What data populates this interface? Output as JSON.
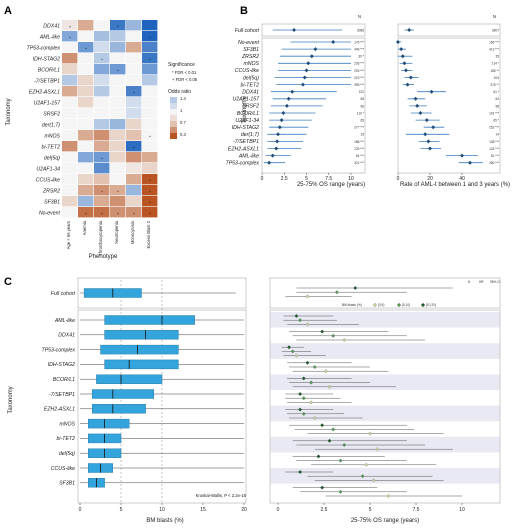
{
  "figure": {
    "panel_labels": [
      "A",
      "B",
      "C"
    ]
  },
  "chart_data": [
    {
      "type": "heatmap",
      "panel": "A",
      "rows": [
        "DDX41",
        "AML-like",
        "TP53-complex",
        "IDH-STAG2",
        "BCOR/L1",
        "-7/SETBP1",
        "EZH2-ASXL1",
        "U2AF1-157",
        "SRSF2",
        "der(1;7)",
        "mNOS",
        "bi-TET2",
        "del(5q)",
        "U2AF1-34",
        "CCUS-like",
        "ZRSR2",
        "SF3B1",
        "No-event"
      ],
      "columns": [
        "Age < 65 years",
        "Anemia",
        "Thrombocytopenia",
        "Neutropenia",
        "Monocytosis",
        "Excess Blast 2"
      ],
      "values": [
        [
          0.9,
          0.6,
          1.0,
          2.6,
          1.6,
          3.0
        ],
        [
          1.8,
          1.0,
          1.5,
          1.4,
          1.0,
          3.0
        ],
        [
          1.0,
          2.0,
          1.2,
          1.6,
          0.6,
          2.4
        ],
        [
          0.5,
          1.0,
          1.4,
          1.0,
          1.0,
          2.6
        ],
        [
          0.8,
          1.0,
          1.8,
          2.0,
          1.0,
          2.0
        ],
        [
          1.4,
          0.8,
          1.2,
          1.0,
          1.0,
          1.4
        ],
        [
          0.6,
          0.8,
          1.4,
          1.0,
          2.4,
          1.0
        ],
        [
          1.0,
          0.8,
          1.0,
          1.0,
          1.2,
          1.0
        ],
        [
          1.0,
          1.0,
          1.0,
          1.0,
          1.2,
          1.0
        ],
        [
          1.0,
          1.0,
          1.4,
          1.6,
          0.8,
          1.0
        ],
        [
          1.0,
          0.6,
          0.5,
          0.8,
          0.7,
          1.0
        ],
        [
          0.5,
          1.0,
          0.6,
          0.8,
          2.8,
          1.0
        ],
        [
          1.0,
          1.8,
          2.0,
          0.8,
          0.5,
          0.6
        ],
        [
          1.0,
          1.0,
          2.2,
          1.0,
          0.9,
          0.8
        ],
        [
          1.0,
          0.8,
          0.7,
          1.0,
          0.6,
          0.3
        ],
        [
          1.0,
          0.6,
          0.5,
          0.6,
          1.6,
          0.3
        ],
        [
          0.8,
          1.6,
          0.6,
          0.5,
          0.8,
          0.2
        ],
        [
          1.0,
          0.4,
          0.4,
          0.5,
          0.5,
          0.3
        ]
      ],
      "significance": [
        [
          "+",
          "",
          "",
          "*",
          "",
          ""
        ],
        [
          "*",
          "",
          "",
          "",
          "",
          "*"
        ],
        [
          "",
          "*",
          "",
          "",
          "",
          ""
        ],
        [
          "",
          "",
          "*",
          "",
          "",
          "*"
        ],
        [
          "",
          "",
          "",
          "*",
          "",
          ""
        ],
        [
          "",
          "",
          "",
          "",
          "",
          ""
        ],
        [
          "",
          "",
          "",
          "",
          "*",
          ""
        ],
        [
          "",
          "",
          "",
          "",
          "",
          ""
        ],
        [
          "",
          "",
          "",
          "",
          "",
          ""
        ],
        [
          "",
          "",
          "",
          "",
          "",
          ""
        ],
        [
          "",
          "",
          "",
          "",
          "",
          "*"
        ],
        [
          "",
          "",
          "",
          "",
          "*",
          ""
        ],
        [
          "",
          "",
          "*",
          "",
          "",
          ""
        ],
        [
          "",
          "",
          "",
          "",
          "",
          ""
        ],
        [
          "",
          "",
          "",
          "",
          "",
          "*"
        ],
        [
          "",
          "",
          "*",
          "*",
          "",
          "*"
        ],
        [
          "",
          "",
          "",
          "",
          "",
          "*"
        ],
        [
          "",
          "*",
          "*",
          "*",
          "*",
          "*"
        ]
      ],
      "xlabel": "Phenotype",
      "ylabel": "Taxonomy",
      "legend_sig_title": "Significance",
      "legend_sig_items": [
        "* FDR < 0.01",
        "+ FDR < 0.05"
      ],
      "legend_color_title": "Odds ratio",
      "legend_color_ticks": [
        "1.4",
        "1",
        "0.7",
        "0.3"
      ]
    },
    {
      "type": "scatter",
      "panel": "B-left",
      "categories": [
        "Full cohort",
        "No-event",
        "SF3B1",
        "ZRSR2",
        "mNOS",
        "CCUS-like",
        "del(5q)",
        "bi-TET2",
        "DDX41",
        "U2AF1-157",
        "SRSF2",
        "BCOR/L1",
        "U2AF1-34",
        "IDH-STAG2",
        "der(1;7)",
        "-7/SETBP1",
        "EZH2-ASXL1",
        "AML-like",
        "TP53-complex"
      ],
      "values": [
        3.6,
        8.0,
        6.0,
        5.6,
        5.2,
        5.0,
        4.8,
        4.6,
        3.4,
        3.0,
        2.8,
        2.4,
        2.2,
        2.0,
        1.8,
        1.7,
        1.6,
        1.2,
        0.8
      ],
      "low": [
        1.2,
        3.2,
        2.2,
        2.0,
        1.8,
        1.8,
        1.4,
        1.6,
        1.0,
        1.2,
        1.0,
        0.8,
        0.8,
        0.8,
        0.6,
        0.6,
        0.6,
        0.4,
        0.2
      ],
      "high": [
        9.0,
        10,
        10,
        10,
        10,
        10,
        10,
        10,
        8.4,
        7.2,
        6.8,
        6.0,
        5.6,
        5.2,
        5.0,
        4.6,
        4.4,
        3.2,
        2.6
      ],
      "n_labels": [
        "3085",
        "175",
        "449",
        "39",
        "236",
        "203",
        "219",
        "399",
        "102",
        "68",
        "66",
        "110",
        "65",
        "277",
        "15",
        "188",
        "129",
        "64",
        "321"
      ],
      "sig": [
        "",
        "***",
        "***",
        "*",
        "***",
        "***",
        "***",
        "***",
        "",
        "",
        "",
        "*",
        "",
        "***",
        "",
        "***",
        "***",
        "***",
        "***"
      ],
      "n_header": "N",
      "xlabel": "25-75% OS range (years)",
      "ylabel": "Taxonomy",
      "xticks": [
        "0",
        "2.5",
        "5",
        "7.5",
        "10"
      ],
      "xlim": [
        0,
        10
      ]
    },
    {
      "type": "scatter",
      "panel": "B-right",
      "values": [
        0.07,
        0.0,
        0.02,
        0.03,
        0.04,
        0.05,
        0.08,
        0.06,
        0.21,
        0.11,
        0.12,
        0.14,
        0.18,
        0.22,
        0.17,
        0.19,
        0.2,
        0.4,
        0.45
      ],
      "low": [
        0.04,
        0.0,
        0.0,
        0.0,
        0.01,
        0.02,
        0.04,
        0.03,
        0.12,
        0.06,
        0.07,
        0.08,
        0.11,
        0.16,
        0.05,
        0.13,
        0.14,
        0.3,
        0.38
      ],
      "high": [
        0.1,
        0.02,
        0.05,
        0.09,
        0.09,
        0.09,
        0.13,
        0.1,
        0.3,
        0.17,
        0.18,
        0.21,
        0.26,
        0.29,
        0.32,
        0.26,
        0.27,
        0.5,
        0.53
      ],
      "n_labels": [
        "2807",
        "156",
        "413",
        "35",
        "214",
        "185",
        "204",
        "375",
        "61",
        "64",
        "58",
        "101",
        "65",
        "252",
        "14",
        "138",
        "124",
        "51",
        "280"
      ],
      "sig": [
        "",
        "***",
        "***",
        "",
        "*",
        "**",
        "",
        "**",
        "*",
        "",
        "",
        "***",
        "*",
        "***",
        "",
        "***",
        "***",
        "***",
        "***"
      ],
      "n_header": "N",
      "xlabel": "Rate of AML-t between 1 and 3 years (%)",
      "xticks": [
        "0",
        "20",
        "40"
      ],
      "xlim": [
        0,
        0.55
      ]
    },
    {
      "type": "bar",
      "panel": "C-left",
      "categories": [
        "Full cohort",
        "AML-like",
        "DDX41",
        "TP53-complex",
        "IDH-STAG2",
        "BCOR/L1",
        "-7/SETBP1",
        "EZH2-ASXL1",
        "mNOS",
        "bi-TET2",
        "del(5q)",
        "CCUS-like",
        "SF3B1"
      ],
      "q1": [
        0.5,
        3,
        3,
        2.5,
        3,
        2,
        1.5,
        1.5,
        1,
        1,
        1,
        1,
        1
      ],
      "median": [
        4,
        10,
        8,
        7,
        6,
        5,
        4,
        4,
        3,
        3,
        3,
        2.5,
        2
      ],
      "q3": [
        7.5,
        14,
        12,
        12,
        12,
        10,
        9,
        8,
        6,
        5,
        5,
        4,
        3
      ],
      "whisker_low": [
        0,
        0,
        0,
        0,
        0,
        0,
        0,
        0,
        0,
        0,
        0,
        0,
        0
      ],
      "whisker_high": [
        19,
        20,
        20,
        20,
        20,
        20,
        20,
        20,
        20,
        20,
        20,
        20,
        20
      ],
      "xlabel": "BM blasts (%)",
      "ylabel": "Taxonomy",
      "xticks": [
        "0",
        "5",
        "10",
        "15",
        "20"
      ],
      "xlim": [
        0,
        20
      ],
      "annotation": "Kruskal-Wallis, P < 2.2e-16"
    },
    {
      "type": "scatter",
      "panel": "C-right",
      "legend_title": "BM blasts (%)",
      "legend_items": [
        "[0,5)",
        "[5,10)",
        "[10,20)"
      ],
      "legend_colors": [
        "#c7d3a2",
        "#5a9a5a",
        "#1f5a32"
      ],
      "xlabel": "25-75% OS range (years)",
      "xticks": [
        "0",
        "2.5",
        "5",
        "7.5",
        "10"
      ],
      "xlim": [
        0,
        10
      ],
      "header": [
        "N",
        "HR",
        "95% CI"
      ],
      "rows": [
        {
          "cat": "Full cohort",
          "groups": [
            {
              "b": 2,
              "mid": 4.2,
              "lo": 1.0,
              "hi": 9.5
            },
            {
              "b": 1,
              "mid": 3.2,
              "lo": 1.0,
              "hi": 7.0
            },
            {
              "b": 0,
              "mid": 1.6,
              "lo": 0.4,
              "hi": 4.0
            }
          ]
        },
        {
          "cat": "AML-like",
          "groups": [
            {
              "b": 2,
              "mid": 1.0,
              "lo": 0.3,
              "hi": 3.0
            },
            {
              "b": 1,
              "mid": 1.2,
              "lo": 0.3,
              "hi": 3.2
            },
            {
              "b": 0,
              "mid": 1.6,
              "lo": 0.5,
              "hi": 4.4
            }
          ]
        },
        {
          "cat": "DDX41",
          "groups": [
            {
              "b": 2,
              "mid": 2.4,
              "lo": 0.6,
              "hi": 6.0
            },
            {
              "b": 1,
              "mid": 3.0,
              "lo": 0.8,
              "hi": 7.0
            },
            {
              "b": 0,
              "mid": 3.6,
              "lo": 1.0,
              "hi": 8.0
            }
          ]
        },
        {
          "cat": "TP53-complex",
          "groups": [
            {
              "b": 2,
              "mid": 0.6,
              "lo": 0.2,
              "hi": 1.4
            },
            {
              "b": 1,
              "mid": 0.8,
              "lo": 0.2,
              "hi": 1.8
            },
            {
              "b": 0,
              "mid": 1.0,
              "lo": 0.3,
              "hi": 2.6
            }
          ]
        },
        {
          "cat": "IDH-STAG2",
          "groups": [
            {
              "b": 2,
              "mid": 1.6,
              "lo": 0.5,
              "hi": 4.0
            },
            {
              "b": 1,
              "mid": 2.0,
              "lo": 0.6,
              "hi": 5.0
            },
            {
              "b": 0,
              "mid": 2.6,
              "lo": 0.8,
              "hi": 6.0
            }
          ]
        },
        {
          "cat": "BCOR/L1",
          "groups": [
            {
              "b": 2,
              "mid": 1.4,
              "lo": 0.5,
              "hi": 4.0
            },
            {
              "b": 1,
              "mid": 1.8,
              "lo": 0.6,
              "hi": 5.0
            },
            {
              "b": 0,
              "mid": 2.8,
              "lo": 0.8,
              "hi": 6.4
            }
          ]
        },
        {
          "cat": "-7/SETBP1",
          "groups": [
            {
              "b": 2,
              "mid": 1.2,
              "lo": 0.4,
              "hi": 3.0
            },
            {
              "b": 1,
              "mid": 1.4,
              "lo": 0.4,
              "hi": 3.4
            },
            {
              "b": 0,
              "mid": 1.8,
              "lo": 0.5,
              "hi": 4.0
            }
          ]
        },
        {
          "cat": "EZH2-ASXL1",
          "groups": [
            {
              "b": 2,
              "mid": 1.2,
              "lo": 0.4,
              "hi": 3.0
            },
            {
              "b": 1,
              "mid": 1.4,
              "lo": 0.5,
              "hi": 3.6
            },
            {
              "b": 0,
              "mid": 2.0,
              "lo": 0.6,
              "hi": 4.6
            }
          ]
        },
        {
          "cat": "mNOS",
          "groups": [
            {
              "b": 2,
              "mid": 2.4,
              "lo": 0.6,
              "hi": 7.0
            },
            {
              "b": 1,
              "mid": 3.0,
              "lo": 0.9,
              "hi": 7.4
            },
            {
              "b": 0,
              "mid": 5.0,
              "lo": 1.6,
              "hi": 9.0
            }
          ]
        },
        {
          "cat": "bi-TET2",
          "groups": [
            {
              "b": 2,
              "mid": 2.8,
              "lo": 0.8,
              "hi": 7.0
            },
            {
              "b": 1,
              "mid": 3.6,
              "lo": 1.0,
              "hi": 8.0
            },
            {
              "b": 0,
              "mid": 5.4,
              "lo": 2.0,
              "hi": 9.5
            }
          ]
        },
        {
          "cat": "del(5q)",
          "groups": [
            {
              "b": 2,
              "mid": 2.2,
              "lo": 0.8,
              "hi": 5.8
            },
            {
              "b": 1,
              "mid": 3.4,
              "lo": 1.0,
              "hi": 7.0
            },
            {
              "b": 0,
              "mid": 4.8,
              "lo": 1.8,
              "hi": 8.6
            }
          ]
        },
        {
          "cat": "CCUS-like",
          "groups": [
            {
              "b": 2,
              "mid": 1.2,
              "lo": 0.4,
              "hi": 3.0
            },
            {
              "b": 1,
              "mid": 4.6,
              "lo": 1.6,
              "hi": 8.4
            },
            {
              "b": 0,
              "mid": 5.2,
              "lo": 2.0,
              "hi": 9.0
            }
          ]
        },
        {
          "cat": "SF3B1",
          "groups": [
            {
              "b": 2,
              "mid": 2.4,
              "lo": 0.8,
              "hi": 5.4
            },
            {
              "b": 1,
              "mid": 3.4,
              "lo": 1.2,
              "hi": 7.0
            },
            {
              "b": 0,
              "mid": 6.0,
              "lo": 2.6,
              "hi": 10
            }
          ]
        }
      ]
    }
  ]
}
